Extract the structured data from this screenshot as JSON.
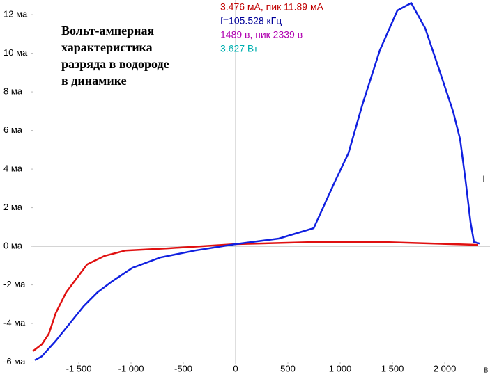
{
  "chart_data": {
    "type": "line",
    "title": [
      "Вольт-амперная",
      "характеристика",
      "разряда в водороде",
      "в динамике"
    ],
    "readouts": [
      {
        "text": "3.476 мА, пик 11.89 мА",
        "color": "#c00000"
      },
      {
        "text": "f=105.528 кГц",
        "color": "#000099"
      },
      {
        "text": "1489 в, пик 2339 в",
        "color": "#b000b0"
      },
      {
        "text": "3.627 Вт",
        "color": "#00b0b0"
      }
    ],
    "x_label": "в",
    "y_label": "I",
    "xlim": [
      -1940,
      2433
    ],
    "ylim": [
      -5.98,
      12.76
    ],
    "xticks": [
      {
        "value": -1500,
        "label": "-1 500"
      },
      {
        "value": -1000,
        "label": "-1 000"
      },
      -500,
      0,
      500,
      {
        "value": 1000,
        "label": "1 000"
      },
      {
        "value": 1500,
        "label": "1 500"
      },
      {
        "value": 2000,
        "label": "2 000"
      }
    ],
    "yticks": [
      {
        "value": -6,
        "label": "-6 ма"
      },
      {
        "value": -4,
        "label": "-4 ма"
      },
      {
        "value": -2,
        "label": "-2 ма"
      },
      {
        "value": 0,
        "label": "0 ма"
      },
      {
        "value": 2,
        "label": "2 ма"
      },
      {
        "value": 4,
        "label": "4 ма"
      },
      {
        "value": 6,
        "label": "6 ма"
      },
      {
        "value": 8,
        "label": "8 ма"
      },
      {
        "value": 10,
        "label": "10 ма"
      },
      {
        "value": 12,
        "label": "12 ма"
      }
    ],
    "series": [
      {
        "color": "#e01010",
        "x": [
          -1940,
          -1853,
          -1787,
          -1720,
          -1620,
          -1520,
          -1420,
          -1253,
          -1053,
          -653,
          0,
          747,
          1413,
          2320
        ],
        "values": [
          -5.44,
          -5.08,
          -4.54,
          -3.46,
          -2.38,
          -1.66,
          -0.94,
          -0.5,
          -0.22,
          -0.11,
          0.11,
          0.22,
          0.22,
          0.07
        ]
      },
      {
        "color": "#1020e0",
        "x": [
          -1920,
          -1853,
          -1720,
          -1587,
          -1453,
          -1320,
          -1187,
          -987,
          -720,
          -387,
          0,
          413,
          747,
          947,
          1080,
          1213,
          1380,
          1547,
          1680,
          1813,
          1947,
          2080,
          2147,
          2200,
          2247,
          2280,
          2333
        ],
        "values": [
          -5.9,
          -5.7,
          -4.9,
          -4.0,
          -3.1,
          -2.38,
          -1.84,
          -1.12,
          -0.58,
          -0.22,
          0.11,
          0.4,
          0.94,
          3.32,
          4.83,
          7.35,
          10.16,
          12.22,
          12.6,
          11.3,
          9.15,
          6.99,
          5.55,
          3.39,
          1.23,
          0.22,
          0.14
        ]
      }
    ]
  }
}
